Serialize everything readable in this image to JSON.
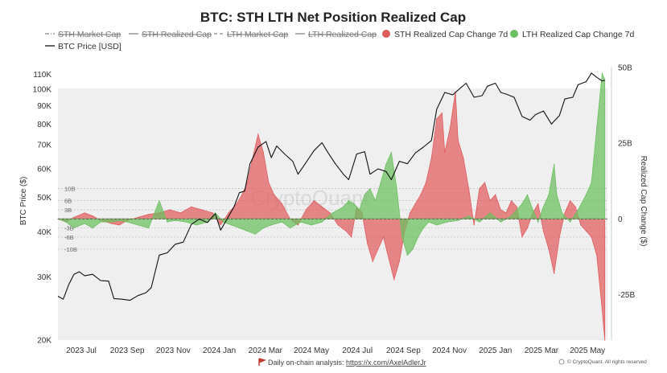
{
  "chart_data": {
    "type": "area",
    "title": "BTC: STH LTH Net Position Realized Cap",
    "legend": [
      {
        "label": "STH Market Cap",
        "style": "dash-dot",
        "hidden": true
      },
      {
        "label": "STH Realized Cap",
        "style": "solid",
        "hidden": true
      },
      {
        "label": "LTH Market Cap",
        "style": "dashed",
        "hidden": true
      },
      {
        "label": "LTH Realized Cap",
        "style": "solid",
        "hidden": true
      },
      {
        "label": "STH Realized Cap Change 7d",
        "style": "dot",
        "color": "#e05c5c",
        "hidden": false
      },
      {
        "label": "LTH Realized Cap Change 7d",
        "style": "dot",
        "color": "#6abf5e",
        "hidden": false
      },
      {
        "label": "BTC Price [USD]",
        "style": "solid",
        "color": "#111111",
        "hidden": false
      }
    ],
    "x_ticks": [
      "2023 Jul",
      "2023 Sep",
      "2023 Nov",
      "2024 Jan",
      "2024 Mar",
      "2024 May",
      "2024 Jul",
      "2024 Sep",
      "2024 Nov",
      "2025 Jan",
      "2025 Mar",
      "2025 May"
    ],
    "left_axis": {
      "label": "BTC Price ($)",
      "scale": "log",
      "range": [
        20000,
        115000
      ],
      "ticks": [
        {
          "value": 20000,
          "label": "20K"
        },
        {
          "value": 30000,
          "label": "30K"
        },
        {
          "value": 40000,
          "label": "40K"
        },
        {
          "value": 50000,
          "label": "50K"
        },
        {
          "value": 60000,
          "label": "60K"
        },
        {
          "value": 70000,
          "label": "70K"
        },
        {
          "value": 80000,
          "label": "80K"
        },
        {
          "value": 90000,
          "label": "90K"
        },
        {
          "value": 100000,
          "label": "100K"
        },
        {
          "value": 110000,
          "label": "110K"
        }
      ]
    },
    "right_axis": {
      "label": "Realized Cap Change ($)",
      "scale": "linear",
      "unit": "B",
      "range": [
        -40,
        50
      ],
      "ticks": [
        {
          "value": 50,
          "label": "50B"
        },
        {
          "value": 25,
          "label": "25B"
        },
        {
          "value": 0,
          "label": "0"
        },
        {
          "value": -25,
          "label": "-25B"
        }
      ],
      "inner_ticks": [
        {
          "value": 10,
          "label": "10B"
        },
        {
          "value": 6,
          "label": "6B"
        },
        {
          "value": 3,
          "label": "3B"
        },
        {
          "value": -3,
          "label": "-3B"
        },
        {
          "value": -6,
          "label": "-6B"
        },
        {
          "value": -10,
          "label": "-10B"
        }
      ]
    },
    "grid": false,
    "btc_price": [
      [
        2023.42,
        26500
      ],
      [
        2023.44,
        26000
      ],
      [
        2023.46,
        28500
      ],
      [
        2023.48,
        30500
      ],
      [
        2023.5,
        31000
      ],
      [
        2023.52,
        30200
      ],
      [
        2023.55,
        30500
      ],
      [
        2023.58,
        29300
      ],
      [
        2023.61,
        29200
      ],
      [
        2023.63,
        26100
      ],
      [
        2023.66,
        26000
      ],
      [
        2023.69,
        25800
      ],
      [
        2023.72,
        26600
      ],
      [
        2023.75,
        27100
      ],
      [
        2023.77,
        28000
      ],
      [
        2023.8,
        34500
      ],
      [
        2023.83,
        35000
      ],
      [
        2023.86,
        37000
      ],
      [
        2023.89,
        37500
      ],
      [
        2023.92,
        42000
      ],
      [
        2023.95,
        43500
      ],
      [
        2023.98,
        42500
      ],
      [
        2024.01,
        45000
      ],
      [
        2024.03,
        40500
      ],
      [
        2024.05,
        43000
      ],
      [
        2024.08,
        47000
      ],
      [
        2024.1,
        51500
      ],
      [
        2024.12,
        52000
      ],
      [
        2024.14,
        62000
      ],
      [
        2024.17,
        69000
      ],
      [
        2024.2,
        71500
      ],
      [
        2024.22,
        64500
      ],
      [
        2024.24,
        69500
      ],
      [
        2024.27,
        66000
      ],
      [
        2024.3,
        63000
      ],
      [
        2024.32,
        58000
      ],
      [
        2024.35,
        62500
      ],
      [
        2024.38,
        67500
      ],
      [
        2024.41,
        71000
      ],
      [
        2024.43,
        67000
      ],
      [
        2024.46,
        62000
      ],
      [
        2024.49,
        58000
      ],
      [
        2024.51,
        56000
      ],
      [
        2024.54,
        66000
      ],
      [
        2024.57,
        67000
      ],
      [
        2024.59,
        58000
      ],
      [
        2024.62,
        60000
      ],
      [
        2024.65,
        59000
      ],
      [
        2024.67,
        56000
      ],
      [
        2024.7,
        63000
      ],
      [
        2024.73,
        62000
      ],
      [
        2024.76,
        66500
      ],
      [
        2024.79,
        69000
      ],
      [
        2024.82,
        72000
      ],
      [
        2024.84,
        88000
      ],
      [
        2024.87,
        98000
      ],
      [
        2024.9,
        96500
      ],
      [
        2024.93,
        101000
      ],
      [
        2024.95,
        104000
      ],
      [
        2024.98,
        95000
      ],
      [
        2025.01,
        96000
      ],
      [
        2025.03,
        102000
      ],
      [
        2025.06,
        104000
      ],
      [
        2025.08,
        98000
      ],
      [
        2025.1,
        97000
      ],
      [
        2025.13,
        95000
      ],
      [
        2025.16,
        84000
      ],
      [
        2025.19,
        82000
      ],
      [
        2025.21,
        85000
      ],
      [
        2025.24,
        87000
      ],
      [
        2025.27,
        80000
      ],
      [
        2025.3,
        84500
      ],
      [
        2025.32,
        94000
      ],
      [
        2025.35,
        95000
      ],
      [
        2025.37,
        103000
      ],
      [
        2025.4,
        105000
      ],
      [
        2025.42,
        111000
      ],
      [
        2025.44,
        108000
      ],
      [
        2025.46,
        105500
      ],
      [
        2025.47,
        106000
      ]
    ],
    "series": [
      {
        "name": "STH Realized Cap Change 7d",
        "color": "#e05c5c",
        "unit": "B USD",
        "points": [
          [
            2023.42,
            0
          ],
          [
            2023.45,
            -1
          ],
          [
            2023.48,
            0.5
          ],
          [
            2023.52,
            2
          ],
          [
            2023.55,
            1
          ],
          [
            2023.58,
            -0.5
          ],
          [
            2023.62,
            -1.5
          ],
          [
            2023.65,
            -2
          ],
          [
            2023.68,
            -0.5
          ],
          [
            2023.72,
            0.5
          ],
          [
            2023.76,
            1.5
          ],
          [
            2023.8,
            2
          ],
          [
            2023.84,
            3
          ],
          [
            2023.88,
            2
          ],
          [
            2023.92,
            4
          ],
          [
            2023.96,
            3
          ],
          [
            2024.0,
            2
          ],
          [
            2024.03,
            -2
          ],
          [
            2024.06,
            2
          ],
          [
            2024.09,
            5
          ],
          [
            2024.11,
            8
          ],
          [
            2024.13,
            12
          ],
          [
            2024.15,
            20
          ],
          [
            2024.17,
            28
          ],
          [
            2024.19,
            22
          ],
          [
            2024.21,
            12
          ],
          [
            2024.23,
            8
          ],
          [
            2024.26,
            5
          ],
          [
            2024.29,
            0
          ],
          [
            2024.32,
            -2
          ],
          [
            2024.35,
            3
          ],
          [
            2024.38,
            6
          ],
          [
            2024.41,
            4
          ],
          [
            2024.44,
            2
          ],
          [
            2024.47,
            -2
          ],
          [
            2024.5,
            -4
          ],
          [
            2024.52,
            -6
          ],
          [
            2024.54,
            4
          ],
          [
            2024.56,
            2
          ],
          [
            2024.58,
            -8
          ],
          [
            2024.6,
            -14
          ],
          [
            2024.62,
            -10
          ],
          [
            2024.64,
            -6
          ],
          [
            2024.66,
            -13
          ],
          [
            2024.68,
            -20
          ],
          [
            2024.7,
            -14
          ],
          [
            2024.72,
            -4
          ],
          [
            2024.74,
            2
          ],
          [
            2024.76,
            5
          ],
          [
            2024.78,
            8
          ],
          [
            2024.8,
            12
          ],
          [
            2024.82,
            20
          ],
          [
            2024.84,
            33
          ],
          [
            2024.86,
            35
          ],
          [
            2024.87,
            22
          ],
          [
            2024.89,
            30
          ],
          [
            2024.91,
            42
          ],
          [
            2024.92,
            26
          ],
          [
            2024.94,
            20
          ],
          [
            2024.96,
            10
          ],
          [
            2024.98,
            -2
          ],
          [
            2025.0,
            10
          ],
          [
            2025.02,
            12
          ],
          [
            2025.04,
            6
          ],
          [
            2025.06,
            8
          ],
          [
            2025.08,
            3
          ],
          [
            2025.1,
            2
          ],
          [
            2025.12,
            6
          ],
          [
            2025.14,
            4
          ],
          [
            2025.16,
            -6
          ],
          [
            2025.18,
            -3
          ],
          [
            2025.2,
            2
          ],
          [
            2025.22,
            5
          ],
          [
            2025.24,
            -4
          ],
          [
            2025.26,
            -10
          ],
          [
            2025.28,
            -18
          ],
          [
            2025.3,
            -6
          ],
          [
            2025.32,
            2
          ],
          [
            2025.34,
            6
          ],
          [
            2025.36,
            4
          ],
          [
            2025.38,
            -2
          ],
          [
            2025.4,
            -4
          ],
          [
            2025.42,
            -6
          ],
          [
            2025.44,
            -12
          ],
          [
            2025.46,
            -30
          ],
          [
            2025.47,
            -40
          ]
        ]
      },
      {
        "name": "LTH Realized Cap Change 7d",
        "color": "#6abf5e",
        "unit": "B USD",
        "points": [
          [
            2023.42,
            0
          ],
          [
            2023.45,
            -1
          ],
          [
            2023.48,
            -3
          ],
          [
            2023.52,
            -1.5
          ],
          [
            2023.55,
            -3
          ],
          [
            2023.58,
            -1
          ],
          [
            2023.62,
            -1
          ],
          [
            2023.65,
            -0.5
          ],
          [
            2023.68,
            -1
          ],
          [
            2023.72,
            -2
          ],
          [
            2023.76,
            -3
          ],
          [
            2023.8,
            6
          ],
          [
            2023.83,
            -1
          ],
          [
            2023.86,
            -0.5
          ],
          [
            2023.9,
            -1
          ],
          [
            2023.94,
            -2
          ],
          [
            2023.98,
            -1
          ],
          [
            2024.01,
            2
          ],
          [
            2024.04,
            -1
          ],
          [
            2024.07,
            -2
          ],
          [
            2024.1,
            -3
          ],
          [
            2024.13,
            -4
          ],
          [
            2024.16,
            -5
          ],
          [
            2024.19,
            -3
          ],
          [
            2024.22,
            -2
          ],
          [
            2024.26,
            -1
          ],
          [
            2024.29,
            -3
          ],
          [
            2024.33,
            -1
          ],
          [
            2024.37,
            -2
          ],
          [
            2024.41,
            -1
          ],
          [
            2024.45,
            2
          ],
          [
            2024.49,
            4
          ],
          [
            2024.51,
            6
          ],
          [
            2024.53,
            5
          ],
          [
            2024.55,
            3
          ],
          [
            2024.57,
            8
          ],
          [
            2024.59,
            10
          ],
          [
            2024.61,
            6
          ],
          [
            2024.63,
            12
          ],
          [
            2024.65,
            18
          ],
          [
            2024.67,
            22
          ],
          [
            2024.69,
            10
          ],
          [
            2024.71,
            -6
          ],
          [
            2024.73,
            -12
          ],
          [
            2024.75,
            -10
          ],
          [
            2024.77,
            -6
          ],
          [
            2024.79,
            -3
          ],
          [
            2024.81,
            -1
          ],
          [
            2024.84,
            -2
          ],
          [
            2024.88,
            -1
          ],
          [
            2024.92,
            -0.5
          ],
          [
            2024.96,
            1
          ],
          [
            2025.0,
            -1
          ],
          [
            2025.04,
            2
          ],
          [
            2025.08,
            -1
          ],
          [
            2025.12,
            1
          ],
          [
            2025.16,
            5
          ],
          [
            2025.18,
            8
          ],
          [
            2025.2,
            3
          ],
          [
            2025.22,
            -1
          ],
          [
            2025.24,
            4
          ],
          [
            2025.26,
            8
          ],
          [
            2025.28,
            18
          ],
          [
            2025.29,
            8
          ],
          [
            2025.31,
            2
          ],
          [
            2025.34,
            -1
          ],
          [
            2025.37,
            3
          ],
          [
            2025.4,
            8
          ],
          [
            2025.42,
            12
          ],
          [
            2025.44,
            30
          ],
          [
            2025.46,
            48
          ],
          [
            2025.47,
            46
          ]
        ]
      }
    ],
    "annotations": [
      "CryptoQuant"
    ],
    "footer": "Daily on-chain analysis: https://x.com/AxelAdlerJr",
    "credit": "© CryptoQuant. All rights reserved",
    "colors": {
      "plot_bg": "#efefef",
      "sth": "#e05c5c",
      "lth": "#6abf5e",
      "price": "#111111",
      "zero_line": "#555555"
    }
  },
  "footer_prefix": "Daily on-chain analysis: ",
  "footer_link": "https://x.com/AxelAdlerJr"
}
